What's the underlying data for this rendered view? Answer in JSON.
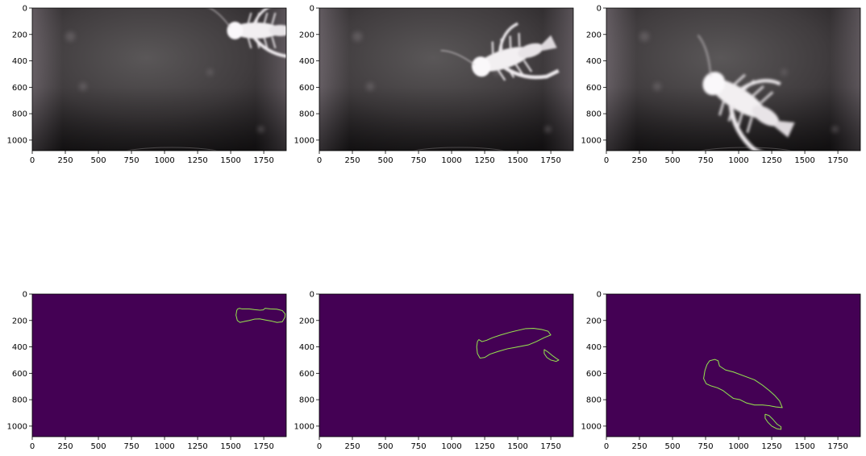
{
  "figure": {
    "layout": "2x3 grid of image panels",
    "background": "#ffffff"
  },
  "chart_data": [
    {
      "panel": "top-left",
      "type": "heatmap",
      "content": "grayscale video frame of a crayfish",
      "colormap": "gray",
      "crayfish_position": "top-right",
      "xlim": [
        0,
        1920
      ],
      "ylim": [
        1080,
        0
      ],
      "xticks": [
        "0",
        "250",
        "500",
        "750",
        "1000",
        "1250",
        "1500",
        "1750"
      ],
      "yticks": [
        "0",
        "200",
        "400",
        "600",
        "800",
        "1000"
      ]
    },
    {
      "panel": "top-middle",
      "type": "heatmap",
      "content": "grayscale video frame of a crayfish",
      "colormap": "gray",
      "crayfish_position": "center-right",
      "xlim": [
        0,
        1920
      ],
      "ylim": [
        1080,
        0
      ],
      "xticks": [
        "0",
        "250",
        "500",
        "750",
        "1000",
        "1250",
        "1500",
        "1750"
      ],
      "yticks": [
        "0",
        "200",
        "400",
        "600",
        "800",
        "1000"
      ]
    },
    {
      "panel": "top-right",
      "type": "heatmap",
      "content": "grayscale video frame of a crayfish",
      "colormap": "gray",
      "crayfish_position": "center, diagonal",
      "xlim": [
        0,
        1920
      ],
      "ylim": [
        1080,
        0
      ],
      "xticks": [
        "0",
        "250",
        "500",
        "750",
        "1000",
        "1250",
        "1500",
        "1750"
      ],
      "yticks": [
        "0",
        "200",
        "400",
        "600",
        "800",
        "1000"
      ]
    },
    {
      "panel": "bottom-left",
      "type": "heatmap",
      "content": "edge-detection contour map",
      "colormap": "viridis",
      "background_color": "#440154",
      "contour_color": "#5ec962",
      "contours": [
        [
          [
            1550,
            115
          ],
          [
            1565,
            108
          ],
          [
            1585,
            112
          ],
          [
            1640,
            112
          ],
          [
            1680,
            118
          ],
          [
            1720,
            122
          ],
          [
            1745,
            120
          ],
          [
            1760,
            108
          ],
          [
            1800,
            112
          ],
          [
            1850,
            115
          ],
          [
            1890,
            125
          ],
          [
            1912,
            150
          ],
          [
            1910,
            175
          ],
          [
            1890,
            210
          ],
          [
            1850,
            215
          ],
          [
            1810,
            205
          ],
          [
            1770,
            198
          ],
          [
            1720,
            188
          ],
          [
            1680,
            190
          ],
          [
            1640,
            200
          ],
          [
            1600,
            208
          ],
          [
            1570,
            215
          ],
          [
            1550,
            200
          ],
          [
            1540,
            160
          ],
          [
            1545,
            128
          ],
          [
            1550,
            115
          ]
        ]
      ],
      "xlim": [
        0,
        1920
      ],
      "ylim": [
        1080,
        0
      ],
      "xticks": [
        "0",
        "250",
        "500",
        "750",
        "1000",
        "1250",
        "1500",
        "1750"
      ],
      "yticks": [
        "0",
        "200",
        "400",
        "600",
        "800",
        "1000"
      ]
    },
    {
      "panel": "bottom-middle",
      "type": "heatmap",
      "content": "edge-detection contour map",
      "colormap": "viridis",
      "background_color": "#440154",
      "contour_color": "#5ec962",
      "contours": [
        [
          [
            1205,
            345
          ],
          [
            1230,
            360
          ],
          [
            1265,
            350
          ],
          [
            1310,
            330
          ],
          [
            1370,
            310
          ],
          [
            1440,
            290
          ],
          [
            1500,
            275
          ],
          [
            1560,
            262
          ],
          [
            1620,
            260
          ],
          [
            1680,
            268
          ],
          [
            1730,
            282
          ],
          [
            1750,
            310
          ],
          [
            1700,
            330
          ],
          [
            1640,
            360
          ],
          [
            1580,
            385
          ],
          [
            1500,
            400
          ],
          [
            1420,
            415
          ],
          [
            1350,
            435
          ],
          [
            1290,
            455
          ],
          [
            1250,
            480
          ],
          [
            1215,
            485
          ],
          [
            1195,
            450
          ],
          [
            1190,
            400
          ],
          [
            1195,
            360
          ],
          [
            1205,
            345
          ]
        ],
        [
          [
            1700,
            420
          ],
          [
            1730,
            440
          ],
          [
            1760,
            465
          ],
          [
            1795,
            490
          ],
          [
            1810,
            500
          ],
          [
            1790,
            510
          ],
          [
            1750,
            500
          ],
          [
            1720,
            480
          ],
          [
            1700,
            450
          ],
          [
            1700,
            420
          ]
        ]
      ],
      "xlim": [
        0,
        1920
      ],
      "ylim": [
        1080,
        0
      ],
      "xticks": [
        "0",
        "250",
        "500",
        "750",
        "1000",
        "1250",
        "1500",
        "1750"
      ],
      "yticks": [
        "0",
        "200",
        "400",
        "600",
        "800",
        "1000"
      ]
    },
    {
      "panel": "bottom-right",
      "type": "heatmap",
      "content": "edge-detection contour map",
      "colormap": "viridis",
      "background_color": "#440154",
      "contour_color": "#5ec962",
      "contours": [
        [
          [
            780,
            505
          ],
          [
            820,
            495
          ],
          [
            845,
            505
          ],
          [
            855,
            545
          ],
          [
            900,
            575
          ],
          [
            960,
            590
          ],
          [
            1040,
            620
          ],
          [
            1120,
            650
          ],
          [
            1180,
            690
          ],
          [
            1230,
            730
          ],
          [
            1270,
            765
          ],
          [
            1310,
            810
          ],
          [
            1330,
            860
          ],
          [
            1280,
            855
          ],
          [
            1230,
            845
          ],
          [
            1180,
            840
          ],
          [
            1120,
            840
          ],
          [
            1060,
            825
          ],
          [
            1010,
            800
          ],
          [
            960,
            790
          ],
          [
            920,
            760
          ],
          [
            880,
            730
          ],
          [
            840,
            710
          ],
          [
            790,
            695
          ],
          [
            755,
            680
          ],
          [
            735,
            640
          ],
          [
            745,
            580
          ],
          [
            760,
            535
          ],
          [
            780,
            505
          ]
        ],
        [
          [
            1200,
            910
          ],
          [
            1230,
            920
          ],
          [
            1260,
            950
          ],
          [
            1290,
            985
          ],
          [
            1320,
            1005
          ],
          [
            1320,
            1025
          ],
          [
            1290,
            1020
          ],
          [
            1250,
            1000
          ],
          [
            1220,
            970
          ],
          [
            1200,
            940
          ],
          [
            1200,
            910
          ]
        ]
      ],
      "xlim": [
        0,
        1920
      ],
      "ylim": [
        1080,
        0
      ],
      "xticks": [
        "0",
        "250",
        "500",
        "750",
        "1000",
        "1250",
        "1500",
        "1750"
      ],
      "yticks": [
        "0",
        "200",
        "400",
        "600",
        "800",
        "1000"
      ]
    }
  ]
}
